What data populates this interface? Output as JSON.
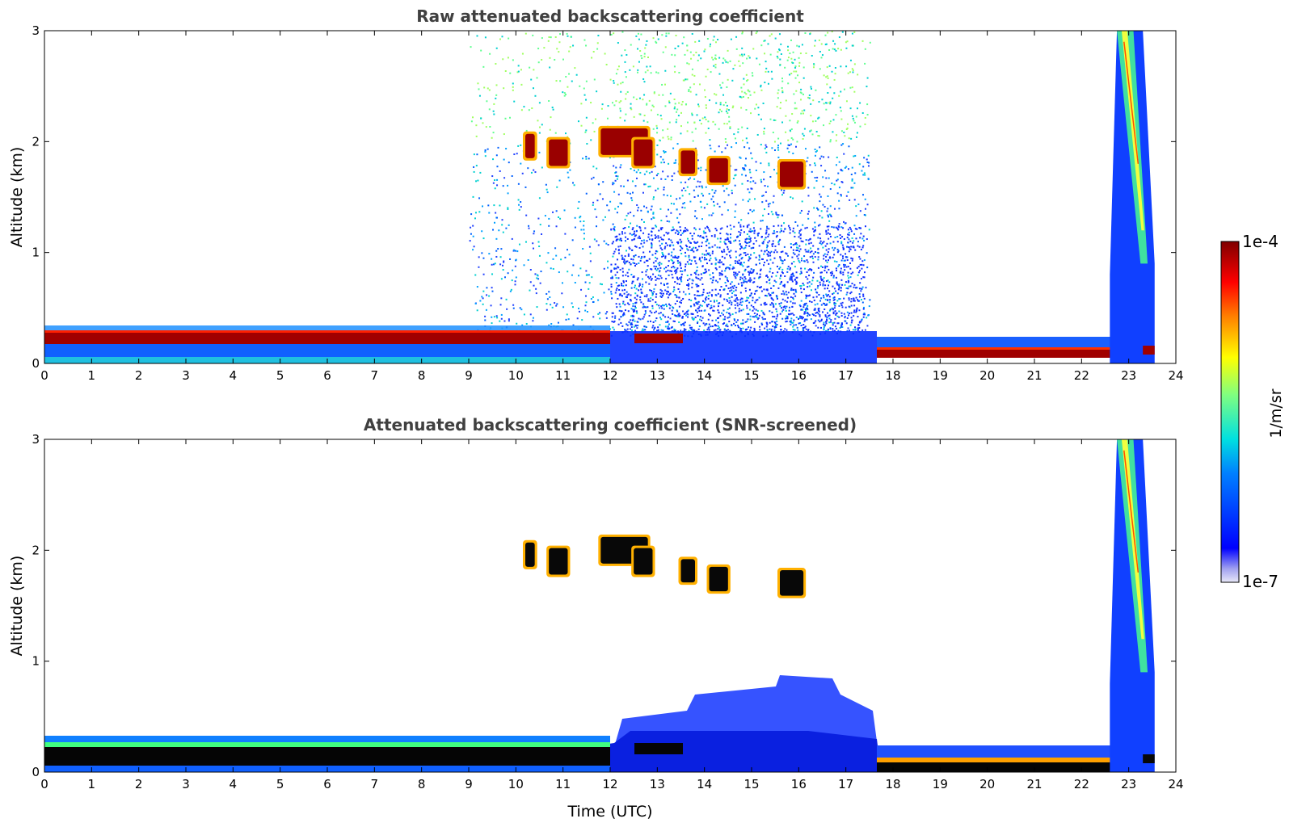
{
  "chart_data": [
    {
      "type": "heatmap",
      "title": "Raw attenuated backscattering coefficient",
      "xlabel": "",
      "ylabel": "Altitude (km)",
      "xlim": [
        0,
        24
      ],
      "ylim": [
        0,
        3
      ],
      "xticks": [
        "0",
        "1",
        "2",
        "3",
        "4",
        "5",
        "6",
        "7",
        "8",
        "9",
        "10",
        "11",
        "12",
        "13",
        "14",
        "15",
        "16",
        "17",
        "18",
        "19",
        "20",
        "21",
        "22",
        "23",
        "24"
      ],
      "yticks": [
        "0",
        "1",
        "2",
        "3"
      ],
      "features": [
        {
          "name": "boundary layer",
          "x": [
            0,
            12
          ],
          "y": [
            0.05,
            0.25
          ],
          "level": "high"
        },
        {
          "name": "boundary layer (evening)",
          "x": [
            17.6,
            22.6
          ],
          "y": [
            0.0,
            0.1
          ],
          "level": "high"
        },
        {
          "name": "cloud layer",
          "x": [
            10.2,
            16.2
          ],
          "y": [
            1.6,
            2.1
          ],
          "level": "high"
        },
        {
          "name": "precipitation streak",
          "x": [
            22.6,
            23.5
          ],
          "y": [
            0,
            3
          ],
          "level": "medium"
        },
        {
          "name": "noise region",
          "x": [
            9,
            17.4
          ],
          "y": [
            0.3,
            3
          ],
          "level": "low"
        }
      ]
    },
    {
      "type": "heatmap",
      "title": "Attenuated backscattering coefficient (SNR-screened)",
      "xlabel": "Time (UTC)",
      "ylabel": "Altitude (km)",
      "xlim": [
        0,
        24
      ],
      "ylim": [
        0,
        3
      ],
      "xticks": [
        "0",
        "1",
        "2",
        "3",
        "4",
        "5",
        "6",
        "7",
        "8",
        "9",
        "10",
        "11",
        "12",
        "13",
        "14",
        "15",
        "16",
        "17",
        "18",
        "19",
        "20",
        "21",
        "22",
        "23",
        "24"
      ],
      "yticks": [
        "0",
        "1",
        "2",
        "3"
      ],
      "features": [
        {
          "name": "boundary layer",
          "x": [
            0,
            12
          ],
          "y": [
            0.05,
            0.25
          ],
          "level": "saturated"
        },
        {
          "name": "cloud layer",
          "x": [
            10.2,
            16.2
          ],
          "y": [
            1.6,
            2.1
          ],
          "level": "saturated"
        },
        {
          "name": "aerosol layer",
          "x": [
            12,
            17.4
          ],
          "y": [
            0.2,
            0.75
          ],
          "level": "low"
        },
        {
          "name": "precipitation streak",
          "x": [
            22.6,
            23.5
          ],
          "y": [
            0,
            3
          ],
          "level": "medium"
        }
      ]
    }
  ],
  "colorbar": {
    "label": "1/m/sr",
    "max_label": "1e-4",
    "min_label": "1e-7",
    "colormap": "jet"
  }
}
